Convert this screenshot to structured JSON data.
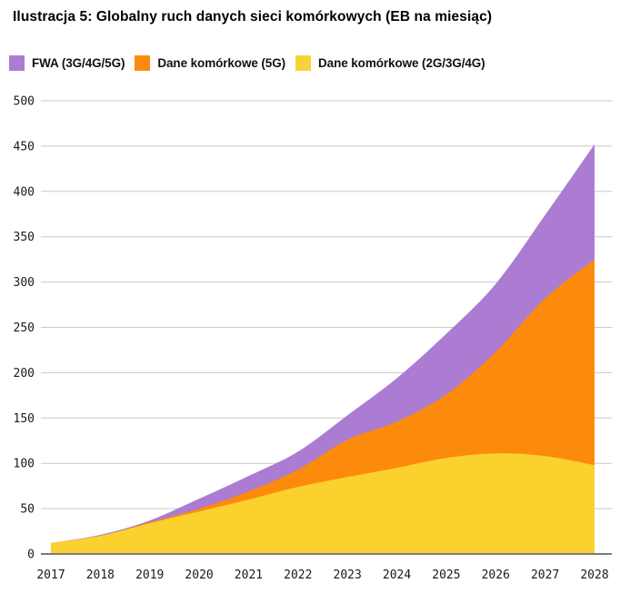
{
  "title": "Ilustracja 5: Globalny ruch danych sieci komórkowych (EB na miesiąc)",
  "legend": [
    {
      "label": "FWA (3G/4G/5G)",
      "color": "#AB7CD1"
    },
    {
      "label": "Dane komórkowe (5G)",
      "color": "#FC8B0D"
    },
    {
      "label": "Dane komórkowe (2G/3G/4G)",
      "color": "#F8D23A"
    }
  ],
  "chart_data": {
    "type": "area",
    "stacked": true,
    "title": "Ilustracja 5: Globalny ruch danych sieci komórkowych (EB na miesiąc)",
    "ylabel": "EB na miesiąc",
    "x": [
      2017,
      2018,
      2019,
      2020,
      2021,
      2022,
      2023,
      2024,
      2025,
      2026,
      2027,
      2028
    ],
    "x_tick_labels": [
      "2017",
      "2018",
      "2019",
      "2020",
      "2021",
      "2022",
      "2023",
      "2024",
      "2025",
      "2026",
      "2027",
      "2028"
    ],
    "series": [
      {
        "name": "Dane komórkowe (2G/3G/4G)",
        "color": "#FAD12D",
        "values": [
          12,
          20,
          34,
          47,
          60,
          74,
          85,
          95,
          106,
          111,
          108,
          98
        ]
      },
      {
        "name": "Dane komórkowe (5G)",
        "color": "#FC8B0D",
        "values": [
          0,
          0,
          1,
          3,
          9,
          19,
          41,
          51,
          70,
          112,
          174,
          227
        ]
      },
      {
        "name": "FWA (3G/4G/5G)",
        "color": "#AB7CD1",
        "values": [
          0,
          1,
          2,
          11,
          17,
          20,
          27,
          48,
          67,
          75,
          92,
          127
        ]
      }
    ],
    "stacked_totals": [
      12,
      21,
      37,
      61,
      86,
      113,
      153,
      194,
      243,
      298,
      374,
      452
    ],
    "ylim": [
      0,
      500
    ],
    "ytick_step": 50,
    "y_tick_labels": [
      "0",
      "50",
      "100",
      "150",
      "200",
      "250",
      "300",
      "350",
      "400",
      "450",
      "500"
    ],
    "grid": true,
    "legend_position": "top-left",
    "colors": {
      "gridline": "#C9C9C9",
      "baseline": "#7B7B7B",
      "tick_text": "#1A1A1A"
    }
  }
}
